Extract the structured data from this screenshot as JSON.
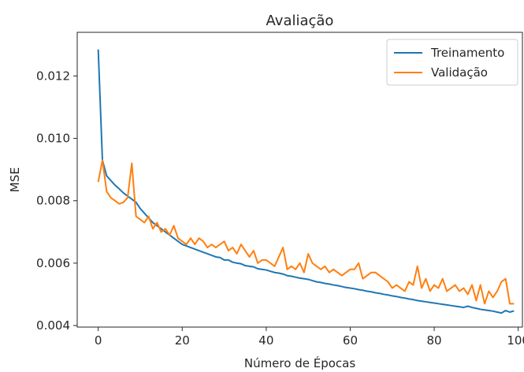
{
  "chart_data": {
    "type": "line",
    "title": "Avaliação",
    "xlabel": "Número de Épocas",
    "ylabel": "MSE",
    "xlim": [
      -5,
      101
    ],
    "ylim": [
      0.00395,
      0.0134
    ],
    "xticks": [
      0,
      20,
      40,
      60,
      80,
      100
    ],
    "xtick_labels": [
      "0",
      "20",
      "40",
      "60",
      "80",
      "100"
    ],
    "yticks": [
      0.004,
      0.006,
      0.008,
      0.01,
      0.012
    ],
    "ytick_labels": [
      "0.004",
      "0.006",
      "0.008",
      "0.010",
      "0.012"
    ],
    "grid": false,
    "legend_position": "top-right",
    "x": [
      0,
      1,
      2,
      3,
      4,
      5,
      6,
      7,
      8,
      9,
      10,
      11,
      12,
      13,
      14,
      15,
      16,
      17,
      18,
      19,
      20,
      21,
      22,
      23,
      24,
      25,
      26,
      27,
      28,
      29,
      30,
      31,
      32,
      33,
      34,
      35,
      36,
      37,
      38,
      39,
      40,
      41,
      42,
      43,
      44,
      45,
      46,
      47,
      48,
      49,
      50,
      51,
      52,
      53,
      54,
      55,
      56,
      57,
      58,
      59,
      60,
      61,
      62,
      63,
      64,
      65,
      66,
      67,
      68,
      69,
      70,
      71,
      72,
      73,
      74,
      75,
      76,
      77,
      78,
      79,
      80,
      81,
      82,
      83,
      84,
      85,
      86,
      87,
      88,
      89,
      90,
      91,
      92,
      93,
      94,
      95,
      96,
      97,
      98,
      99
    ],
    "series": [
      {
        "name": "Treinamento",
        "color": "#1f77b4",
        "values": [
          0.01285,
          0.0093,
          0.0088,
          0.00865,
          0.0085,
          0.00838,
          0.00825,
          0.00815,
          0.00805,
          0.00795,
          0.00775,
          0.0076,
          0.00745,
          0.0073,
          0.0072,
          0.0071,
          0.007,
          0.0069,
          0.0068,
          0.0067,
          0.0066,
          0.00655,
          0.0065,
          0.00645,
          0.0064,
          0.00635,
          0.0063,
          0.00625,
          0.0062,
          0.00618,
          0.0061,
          0.0061,
          0.00603,
          0.006,
          0.00598,
          0.00592,
          0.0059,
          0.00588,
          0.00582,
          0.0058,
          0.00578,
          0.00574,
          0.0057,
          0.00568,
          0.00565,
          0.0056,
          0.00558,
          0.00555,
          0.00552,
          0.0055,
          0.00548,
          0.00544,
          0.0054,
          0.00538,
          0.00535,
          0.00533,
          0.0053,
          0.00528,
          0.00525,
          0.00522,
          0.0052,
          0.00518,
          0.00515,
          0.00513,
          0.0051,
          0.00508,
          0.00505,
          0.00503,
          0.005,
          0.00498,
          0.00495,
          0.00493,
          0.0049,
          0.00488,
          0.00485,
          0.00483,
          0.0048,
          0.00478,
          0.00476,
          0.00474,
          0.00472,
          0.0047,
          0.00468,
          0.00466,
          0.00464,
          0.00462,
          0.0046,
          0.00458,
          0.00462,
          0.00458,
          0.00455,
          0.00452,
          0.0045,
          0.00448,
          0.00446,
          0.00443,
          0.0044,
          0.00448,
          0.00443,
          0.00447
        ]
      },
      {
        "name": "Validação",
        "color": "#ff7f0e",
        "values": [
          0.0086,
          0.0093,
          0.0083,
          0.0081,
          0.008,
          0.0079,
          0.00795,
          0.0081,
          0.0092,
          0.0075,
          0.0074,
          0.0073,
          0.0075,
          0.0071,
          0.0073,
          0.007,
          0.0071,
          0.0069,
          0.0072,
          0.0068,
          0.0067,
          0.0066,
          0.0068,
          0.0066,
          0.0068,
          0.0067,
          0.0065,
          0.0066,
          0.0065,
          0.0066,
          0.0067,
          0.0064,
          0.0065,
          0.0063,
          0.0066,
          0.0064,
          0.0062,
          0.0064,
          0.006,
          0.0061,
          0.0061,
          0.006,
          0.0059,
          0.0062,
          0.0065,
          0.0058,
          0.0059,
          0.0058,
          0.006,
          0.0057,
          0.0063,
          0.006,
          0.0059,
          0.0058,
          0.0059,
          0.0057,
          0.0058,
          0.0057,
          0.0056,
          0.0057,
          0.0058,
          0.0058,
          0.006,
          0.0055,
          0.0056,
          0.0057,
          0.0057,
          0.0056,
          0.0055,
          0.0054,
          0.0052,
          0.0053,
          0.0052,
          0.0051,
          0.0054,
          0.0053,
          0.0059,
          0.0052,
          0.0055,
          0.0051,
          0.0053,
          0.0052,
          0.0055,
          0.0051,
          0.0052,
          0.0053,
          0.0051,
          0.0052,
          0.005,
          0.0053,
          0.0048,
          0.0053,
          0.0047,
          0.0051,
          0.0049,
          0.0051,
          0.0054,
          0.0055,
          0.0047,
          0.0047
        ]
      }
    ]
  }
}
